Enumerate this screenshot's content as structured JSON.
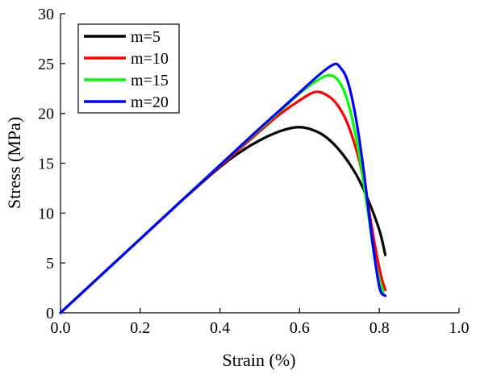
{
  "chart_data": {
    "type": "line",
    "title": "",
    "xlabel": "Strain (%)",
    "ylabel": "Stress (MPa)",
    "xlim": [
      0.0,
      1.0
    ],
    "ylim": [
      0,
      30
    ],
    "xticks": [
      "0.0",
      "0.2",
      "0.4",
      "0.6",
      "0.8",
      "1.0"
    ],
    "yticks": [
      "0",
      "5",
      "10",
      "15",
      "20",
      "25",
      "30"
    ],
    "grid": false,
    "legend_position": "top-left",
    "series": [
      {
        "name": "m=5",
        "color": "#000000",
        "x": [
          0.0,
          0.1,
          0.2,
          0.3,
          0.4,
          0.45,
          0.5,
          0.55,
          0.59,
          0.62,
          0.66,
          0.7,
          0.74,
          0.77,
          0.8,
          0.815
        ],
        "y": [
          0.0,
          3.7,
          7.4,
          11.1,
          14.6,
          16.1,
          17.3,
          18.2,
          18.6,
          18.5,
          17.8,
          16.3,
          14.0,
          11.5,
          8.3,
          5.8
        ]
      },
      {
        "name": "m=10",
        "color": "#ff0000",
        "x": [
          0.0,
          0.1,
          0.2,
          0.3,
          0.4,
          0.5,
          0.55,
          0.6,
          0.635,
          0.66,
          0.69,
          0.72,
          0.75,
          0.77,
          0.79,
          0.805,
          0.815
        ],
        "y": [
          0.0,
          3.7,
          7.4,
          11.1,
          14.7,
          18.2,
          19.9,
          21.3,
          22.1,
          22.0,
          21.1,
          19.0,
          15.2,
          11.2,
          6.5,
          3.6,
          2.3
        ]
      },
      {
        "name": "m=15",
        "color": "#00ff00",
        "x": [
          0.0,
          0.1,
          0.2,
          0.3,
          0.4,
          0.5,
          0.55,
          0.6,
          0.64,
          0.67,
          0.69,
          0.71,
          0.73,
          0.75,
          0.77,
          0.79,
          0.81
        ],
        "y": [
          0.0,
          3.7,
          7.4,
          11.1,
          14.8,
          18.4,
          20.2,
          22.0,
          23.2,
          23.8,
          23.6,
          22.4,
          19.8,
          15.7,
          10.5,
          5.0,
          2.0
        ]
      },
      {
        "name": "m=20",
        "color": "#0000ff",
        "x": [
          0.0,
          0.1,
          0.2,
          0.3,
          0.4,
          0.5,
          0.55,
          0.6,
          0.65,
          0.685,
          0.7,
          0.72,
          0.74,
          0.76,
          0.78,
          0.8,
          0.815
        ],
        "y": [
          0.0,
          3.7,
          7.4,
          11.1,
          14.8,
          18.5,
          20.3,
          22.1,
          23.9,
          24.9,
          24.7,
          23.3,
          19.8,
          14.5,
          8.0,
          2.6,
          1.7
        ]
      }
    ]
  }
}
